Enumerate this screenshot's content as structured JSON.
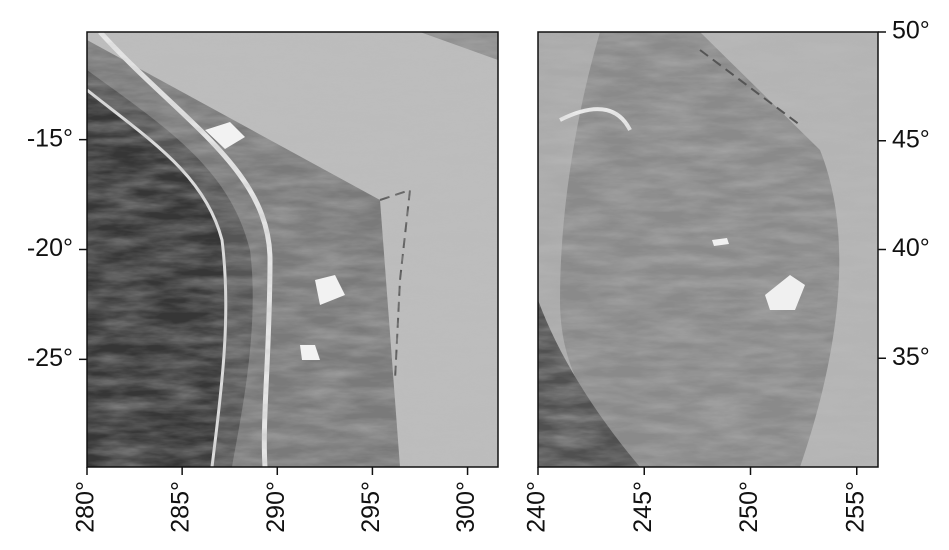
{
  "maps": [
    {
      "xlim": [
        280,
        301.6
      ],
      "ylim": [
        -29.9,
        -10.1
      ],
      "yaxis_side": "left",
      "xticks": [
        {
          "value": 280,
          "label": "280°"
        },
        {
          "value": 285,
          "label": "285°"
        },
        {
          "value": 290,
          "label": "290°"
        },
        {
          "value": 295,
          "label": "295°"
        },
        {
          "value": 300,
          "label": "300°"
        }
      ],
      "yticks": [
        {
          "value": -15,
          "label": "-15°"
        },
        {
          "value": -20,
          "label": "-20°"
        },
        {
          "value": -25,
          "label": "-25°"
        }
      ]
    },
    {
      "xlim": [
        240,
        256
      ],
      "ylim": [
        30,
        50
      ],
      "yaxis_side": "right",
      "xticks": [
        {
          "value": 240,
          "label": "240°"
        },
        {
          "value": 245,
          "label": "245°"
        },
        {
          "value": 250,
          "label": "250°"
        },
        {
          "value": 255,
          "label": "255°"
        }
      ],
      "yticks": [
        {
          "value": 35,
          "label": "35°"
        },
        {
          "value": 40,
          "label": "40°"
        },
        {
          "value": 45,
          "label": "45°"
        },
        {
          "value": 50,
          "label": "50°"
        }
      ]
    }
  ]
}
